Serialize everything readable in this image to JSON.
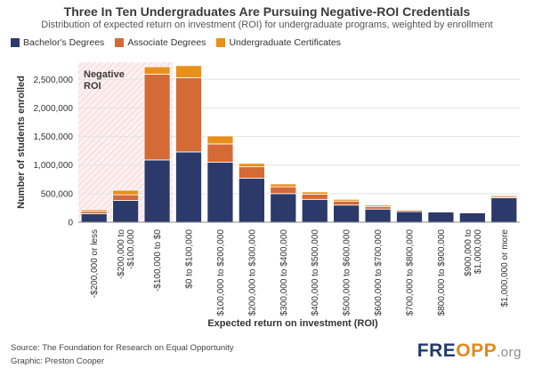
{
  "header": {
    "title": "Three In Ten Undergraduates Are Pursuing Negative-ROI Credentials",
    "subtitle": "Distribution of expected return on investment (ROI) for undergraduate programs, weighted by enrollment"
  },
  "legend": [
    {
      "label": "Bachelor's Degrees",
      "color": "#2b3a6b"
    },
    {
      "label": "Associate Degrees",
      "color": "#d46a36"
    },
    {
      "label": "Undergraduate Certificates",
      "color": "#e8901c"
    }
  ],
  "annotation": {
    "line1": "Negative",
    "line2": "ROI"
  },
  "footer": {
    "source": "Source: The Foundation for Research on Equal Opportunity",
    "graphic": "Graphic: Preston Cooper"
  },
  "logo": {
    "main": "FRE",
    "accent": "OPP",
    "suffix": ".org"
  },
  "chart_data": {
    "type": "bar",
    "stacked": true,
    "xlabel": "Expected return on investment (ROI)",
    "ylabel": "Number of students enrolled",
    "ylim": [
      0,
      2800000
    ],
    "yticks": [
      0,
      500000,
      1000000,
      1500000,
      2000000,
      2500000
    ],
    "ytick_labels": [
      "0",
      "500,000",
      "1,000,000",
      "1,500,000",
      "2,000,000",
      "2,500,000"
    ],
    "negative_roi_categories": 3,
    "categories": [
      "-$200,000 or less",
      "-$200,000 to -$100,000",
      "-$100,000 to $0",
      "$0 to $100,000",
      "$100,000 to $200,000",
      "$200,000 to $300,000",
      "$300,000 to $400,000",
      "$400,000 to $500,000",
      "$500,000 to $600,000",
      "$600,000 to $700,000",
      "$700,000 to $800,000",
      "$800,000 to $900,000",
      "$900,000 to $1,000,000",
      "$1,000,000 or more"
    ],
    "tick_lines": [
      [
        "-$200,000 or less"
      ],
      [
        "-$200,000 to",
        "-$100,000"
      ],
      [
        "-$100,000 to $0"
      ],
      [
        "$0 to $100,000"
      ],
      [
        "$100,000 to $200,000"
      ],
      [
        "$200,000 to $300,000"
      ],
      [
        "$300,000 to $400,000"
      ],
      [
        "$400,000 to $500,000"
      ],
      [
        "$500,000 to $600,000"
      ],
      [
        "$600,000 to $700,000"
      ],
      [
        "$700,000 to $800,000"
      ],
      [
        "$800,000 to $900,000"
      ],
      [
        "$900,000 to",
        "$1,000,000"
      ],
      [
        "$1,000,000 or more"
      ]
    ],
    "series": [
      {
        "name": "Bachelor's Degrees",
        "color": "#2b3a6b",
        "values": [
          150000,
          380000,
          1090000,
          1230000,
          1050000,
          770000,
          500000,
          400000,
          300000,
          230000,
          185000,
          180000,
          165000,
          430000
        ]
      },
      {
        "name": "Associate Degrees",
        "color": "#d46a36",
        "values": [
          40000,
          100000,
          1500000,
          1300000,
          320000,
          200000,
          120000,
          90000,
          70000,
          45000,
          25000,
          15000,
          5000,
          20000
        ]
      },
      {
        "name": "Undergraduate Certificates",
        "color": "#e8901c",
        "values": [
          30000,
          80000,
          130000,
          210000,
          140000,
          60000,
          50000,
          40000,
          30000,
          25000,
          15000,
          10000,
          5000,
          20000
        ]
      }
    ]
  }
}
